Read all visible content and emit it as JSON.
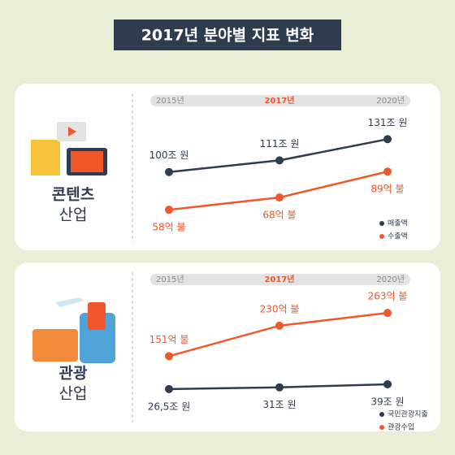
{
  "title": "2017년 분야별 지표 변화",
  "chart_data": [
    {
      "type": "line",
      "label": [
        "콘텐츠",
        "산업"
      ],
      "categories": [
        "2015년",
        "2017년",
        "2020년"
      ],
      "ylim": [
        40,
        155
      ],
      "y2lim": [
        37,
        136
      ],
      "series": [
        {
          "name": "매출액",
          "color": "#2f3b4f",
          "values": [
            100,
            111,
            131
          ],
          "value_labels": [
            "100조 원",
            "111조 원",
            "131조 원"
          ]
        },
        {
          "name": "수출액",
          "color": "#f0572a",
          "axis": "y2",
          "values": [
            58,
            68,
            89
          ],
          "value_labels": [
            "58억 불",
            "68억 불",
            "89억 불"
          ]
        }
      ]
    },
    {
      "type": "line",
      "label": [
        "관광",
        "산업"
      ],
      "categories": [
        "2015년",
        "2017년",
        "2020년"
      ],
      "ylim": [
        -40,
        280
      ],
      "y2lim": [
        0,
        316
      ],
      "series": [
        {
          "name": "국민관광지출",
          "color": "#2f3b4f",
          "values": [
            26.5,
            31,
            39
          ],
          "value_labels": [
            "26,5조 원",
            "31조 원",
            "39조 원"
          ]
        },
        {
          "name": "관광수입",
          "color": "#f0572a",
          "axis": "y2",
          "values": [
            151,
            230,
            263
          ],
          "value_labels": [
            "151억 불",
            "230억 불",
            "263억 불"
          ]
        }
      ]
    }
  ]
}
